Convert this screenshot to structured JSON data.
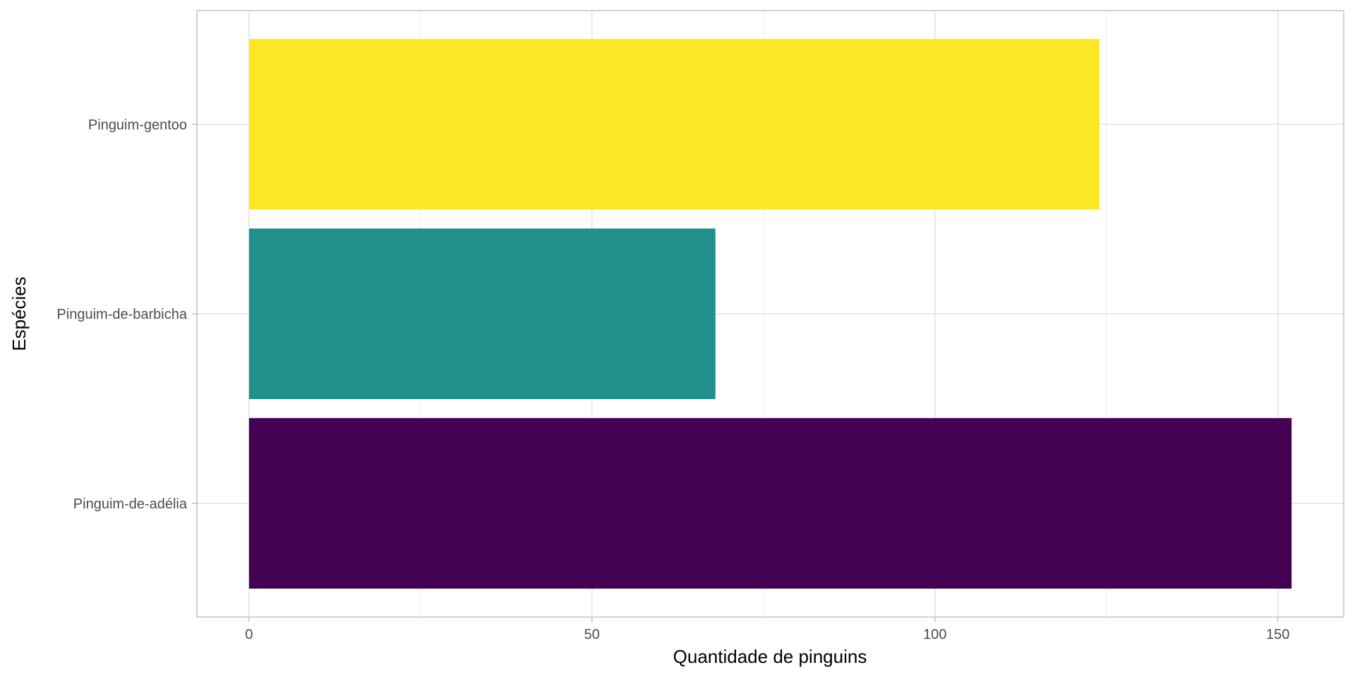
{
  "chart_data": {
    "type": "bar",
    "orientation": "horizontal",
    "title": "",
    "xlabel": "Quantidade de pinguins",
    "ylabel": "Espécies",
    "categories": [
      "Pinguim-de-adélia",
      "Pinguim-de-barbicha",
      "Pinguim-gentoo"
    ],
    "values": [
      152,
      68,
      124
    ],
    "colors": [
      "#440154",
      "#21908C",
      "#FDE725"
    ],
    "xlim": [
      -7.6,
      159.6
    ],
    "x_ticks": [
      0,
      50,
      100,
      150
    ],
    "x_tick_labels": [
      "0",
      "50",
      "100",
      "150"
    ],
    "grid": true,
    "legend": "none"
  }
}
